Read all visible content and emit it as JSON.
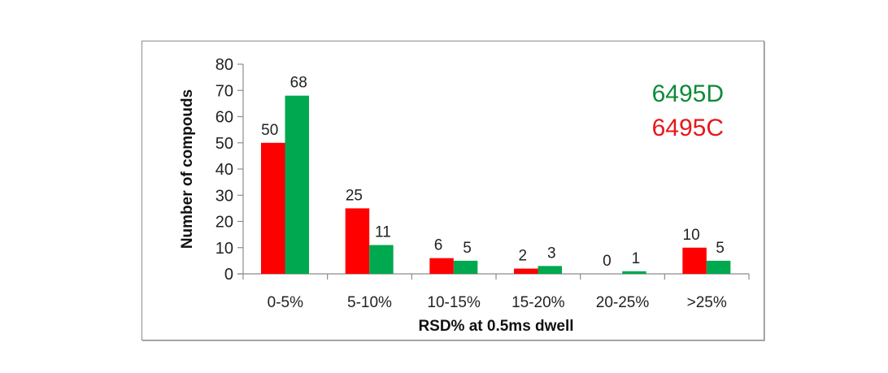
{
  "chart_data": {
    "type": "bar",
    "title": "",
    "xlabel": "RSD% at 0.5ms dwell",
    "ylabel": "Number of compouds",
    "ylim": [
      0,
      80
    ],
    "yticks": [
      0,
      10,
      20,
      30,
      40,
      50,
      60,
      70,
      80
    ],
    "grid": false,
    "legend_position": "top-right (text labels)",
    "categories": [
      "0-5%",
      "5-10%",
      "10-15%",
      "15-20%",
      "20-25%",
      ">25%"
    ],
    "series": [
      {
        "name": "6495C",
        "color": "#ff0000",
        "values": [
          50,
          25,
          6,
          2,
          0,
          10
        ]
      },
      {
        "name": "6495D",
        "color": "#00a84f",
        "values": [
          68,
          11,
          5,
          3,
          1,
          5
        ]
      }
    ]
  },
  "legend": {
    "items": [
      {
        "label": "6495D",
        "color": "#0e8a3a"
      },
      {
        "label": "6495C",
        "color": "#e8161b"
      }
    ]
  },
  "axes": {
    "xlabel": "RSD% at 0.5ms dwell",
    "ylabel": "Number of compouds"
  }
}
